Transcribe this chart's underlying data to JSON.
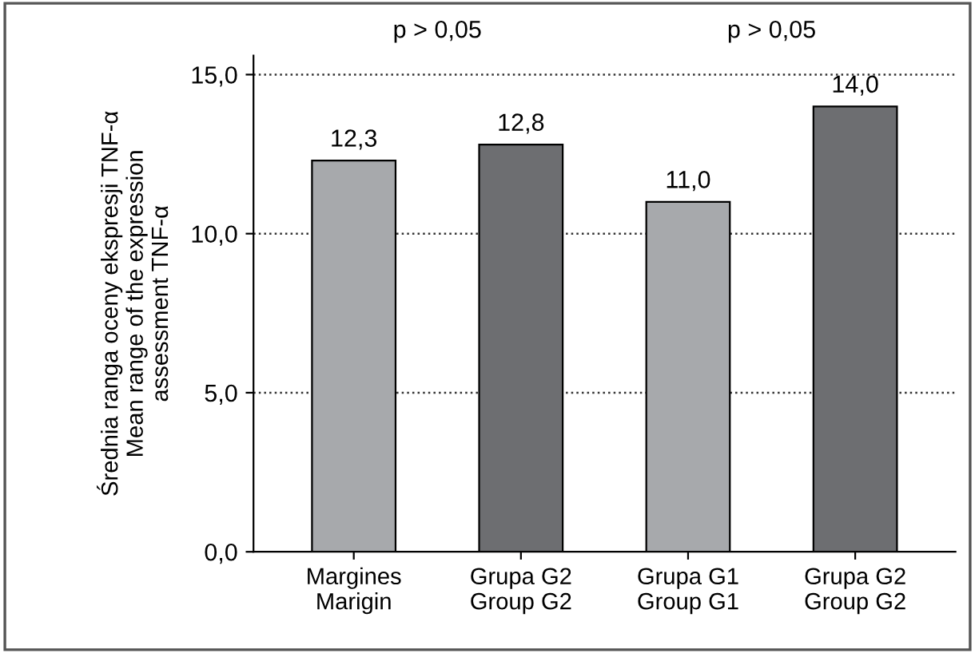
{
  "chart_data": {
    "type": "bar",
    "ylabel": "Średnia ranga oceny ekspresji TNF-α\nMean range of the expression\nassessment TNF-α",
    "categories": [
      "Margines\nMarigin",
      "Grupa G2\nGroup G2",
      "Grupa G1\nGroup G1",
      "Grupa G2\nGroup G2"
    ],
    "values": [
      12.3,
      12.8,
      11.0,
      14.0
    ],
    "value_labels": [
      "12,3",
      "12,8",
      "11,0",
      "14,0"
    ],
    "colors": [
      "#a7a9ac",
      "#6d6e71",
      "#a7a9ac",
      "#6d6e71"
    ],
    "ylim": [
      0,
      15.6
    ],
    "yticks": [
      {
        "value": 0,
        "label": "0,0"
      },
      {
        "value": 5,
        "label": "5,0"
      },
      {
        "value": 10,
        "label": "10,0"
      },
      {
        "value": 15,
        "label": "15,0"
      }
    ],
    "annotations": [
      "p > 0,05",
      "p > 0,05"
    ],
    "grid": "y"
  }
}
